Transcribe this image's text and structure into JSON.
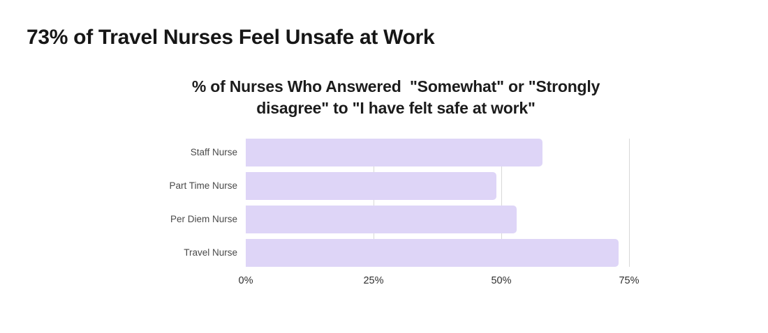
{
  "page_title": "73% of Travel Nurses Feel Unsafe at Work",
  "chart_data": {
    "type": "bar",
    "orientation": "horizontal",
    "title": "% of Nurses Who Answered  \"Somewhat\" or \"Strongly disagree\" to \"I have felt safe at work\"",
    "title_lines": [
      "% of Nurses Who Answered  \"Somewhat\" or \"Strongly",
      "disagree\" to \"I have felt safe at work\""
    ],
    "categories": [
      "Staff Nurse",
      "Part Time Nurse",
      "Per Diem Nurse",
      "Travel Nurse"
    ],
    "values": [
      58,
      49,
      53,
      73
    ],
    "unit": "%",
    "xlabel": "",
    "ylabel": "",
    "xlim": [
      0,
      75
    ],
    "x_ticks": [
      {
        "label": "0%",
        "value": 0
      },
      {
        "label": "25%",
        "value": 25
      },
      {
        "label": "50%",
        "value": 50
      },
      {
        "label": "75%",
        "value": 75
      }
    ],
    "gridlines_at": [
      25,
      50,
      75
    ],
    "grid_style": "vertical-lines-behind-bars",
    "legend": "none",
    "colors": {
      "background": "#ffffff",
      "bar": "#ded5f7",
      "gridline": "#d8d8d8",
      "page_title_text": "#161616",
      "chart_title_text": "#1c1c1c",
      "category_label_text": "#4a4a4a",
      "tick_label_text": "#2e2e2e"
    }
  }
}
